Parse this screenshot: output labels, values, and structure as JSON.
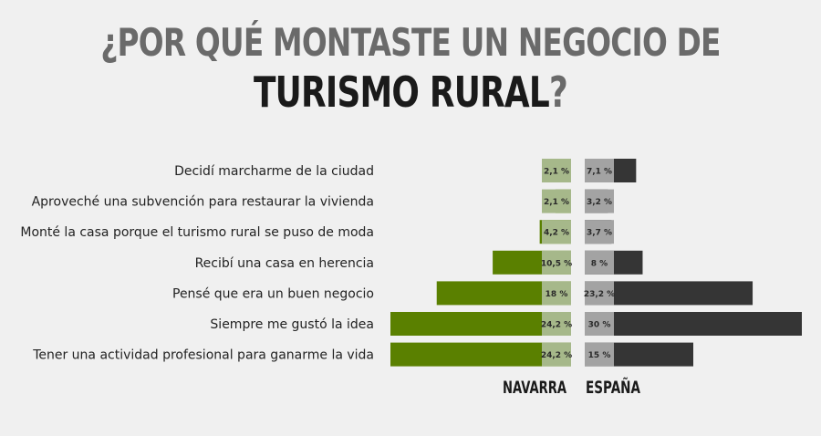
{
  "title": {
    "line1": "¿POR QUÉ MONTASTE UN NEGOCIO DE",
    "line2_main": "TURISMO RURAL",
    "line2_mark": "?"
  },
  "chart_data": {
    "type": "bar",
    "orientation": "horizontal-back-to-back",
    "categories": [
      "Decidí marcharme de la ciudad",
      "Aproveché una subvención para restaurar la vivienda",
      "Monté la casa porque el turismo rural se puso de moda",
      "Recibí una casa en herencia",
      "Pensé que era un buen negocio",
      "Siempre me gustó la idea",
      "Tener una actividad profesional para ganarme la vida"
    ],
    "series": [
      {
        "name": "NAVARRA",
        "values": [
          2.1,
          2.1,
          4.2,
          10.5,
          18,
          24.2,
          24.2
        ],
        "labels": [
          "2,1 %",
          "2,1 %",
          "4,2 %",
          "10,5 %",
          "18 %",
          "24,2 %",
          "24,2 %"
        ],
        "color": "#5a8000",
        "label_bg": "#a6b88a"
      },
      {
        "name": "ESPAÑA",
        "values": [
          7.1,
          3.2,
          3.7,
          8,
          23.2,
          30,
          15
        ],
        "labels": [
          "7,1 %",
          "3,2 %",
          "3,7 %",
          "8 %",
          "23,2 %",
          "30 %",
          "15 %"
        ],
        "color": "#353535",
        "label_bg": "#a3a3a3"
      }
    ],
    "unit": "%",
    "grid": false
  }
}
